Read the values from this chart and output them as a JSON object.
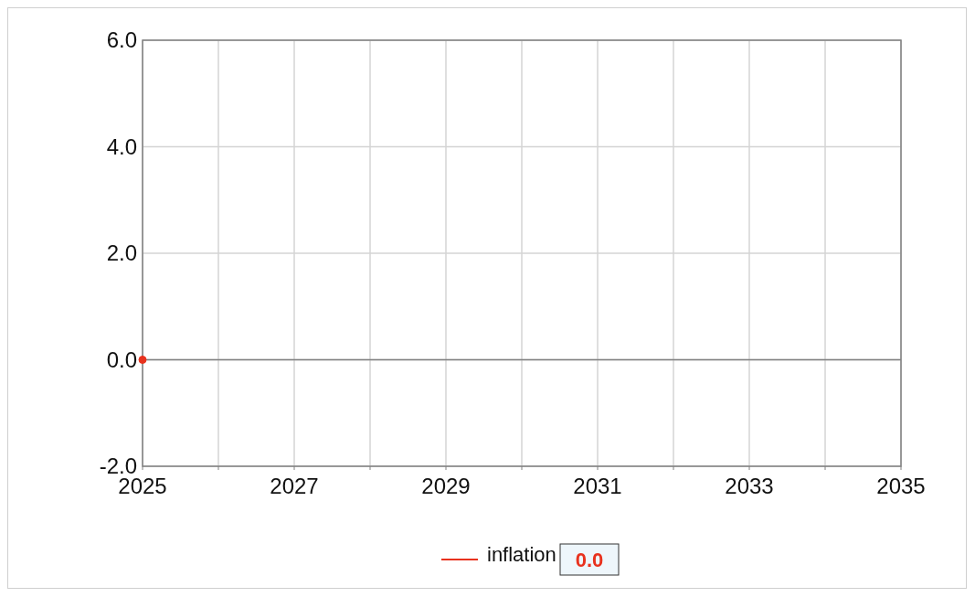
{
  "chart_data": {
    "type": "line",
    "x": [
      2025
    ],
    "series": [
      {
        "name": "inflation",
        "color": "#e8321e",
        "values": [
          0
        ]
      }
    ],
    "xlim": [
      2025,
      2035
    ],
    "xticks": [
      2025,
      {
        "value": 2026,
        "label": null
      },
      2027,
      {
        "value": 2028,
        "label": null
      },
      2029,
      {
        "value": 2030,
        "label": null
      },
      2031,
      {
        "value": 2032,
        "label": null
      },
      2033,
      {
        "value": 2034,
        "label": null
      },
      2035
    ],
    "ylim": [
      -2,
      6
    ],
    "yticks": [
      {
        "value": -2,
        "label": "-2.0"
      },
      {
        "value": 0,
        "label": "0.0"
      },
      {
        "value": 2,
        "label": "2.0"
      },
      {
        "value": 4,
        "label": "4.0"
      },
      {
        "value": 6,
        "label": "6.0"
      }
    ],
    "ref_lines": [
      {
        "axis": "y",
        "value": 0,
        "color": "#808080"
      }
    ],
    "grid": true,
    "marker": "circle",
    "legend": "bottom",
    "annotations": [
      "0.0"
    ]
  }
}
